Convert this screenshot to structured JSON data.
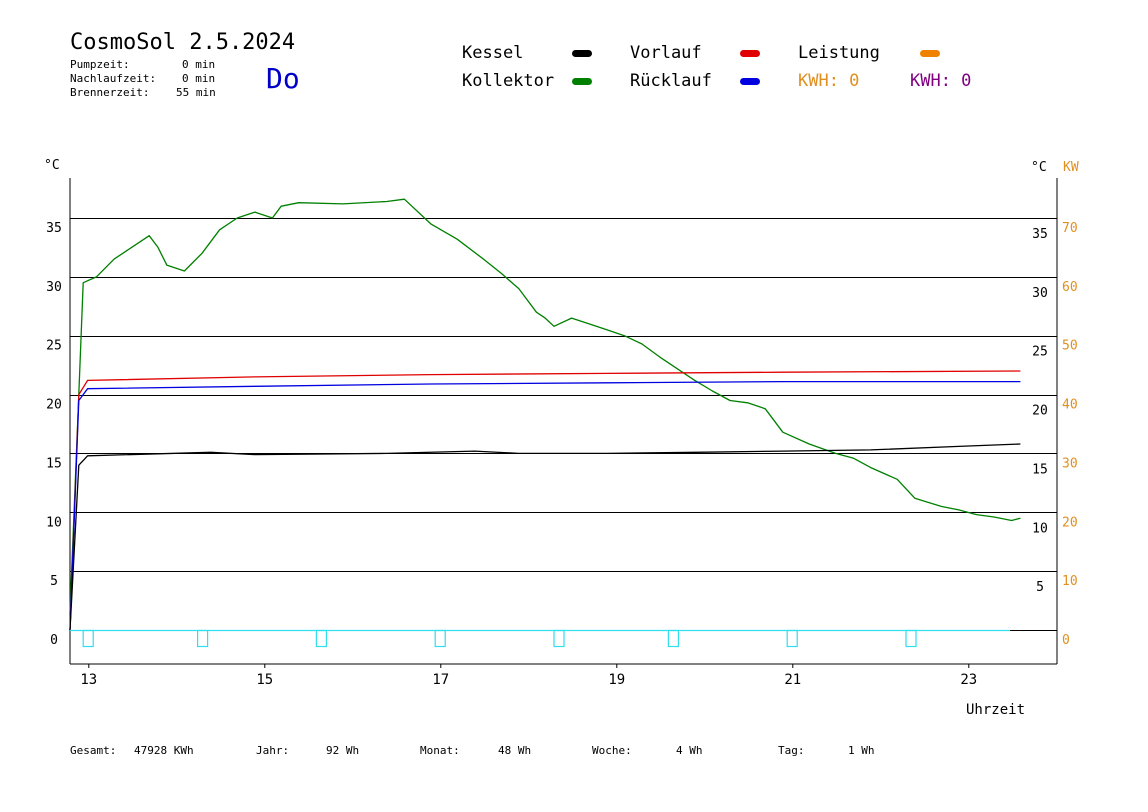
{
  "header": {
    "title": "CosmoSol 2.5.2024",
    "day": "Do",
    "stats": [
      {
        "label": "Pumpzeit:",
        "value": "0 min"
      },
      {
        "label": "Nachlaufzeit:",
        "value": "0 min"
      },
      {
        "label": "Brennerzeit:",
        "value": "55 min"
      }
    ]
  },
  "legend": {
    "kessel": "Kessel",
    "kollektor": "Kollektor",
    "vorlauf": "Vorlauf",
    "ruecklauf": "Rücklauf",
    "leistung": "Leistung",
    "kwh_orange": "KWH: 0",
    "kwh_purple": "KWH: 0"
  },
  "colors": {
    "kessel": "#000000",
    "kollektor": "#008000",
    "vorlauf": "#e00000",
    "ruecklauf": "#0000e0",
    "leistung": "#f08000",
    "kwh_purple": "#800080",
    "pump": "#30e0f0"
  },
  "chart_data": {
    "type": "line",
    "xlabel": "Uhrzeit",
    "ylabel_left": "°C",
    "ylabel_right": "°C",
    "ylabel_right2": "KW",
    "xlim": [
      12.9,
      24.2
    ],
    "ylim": [
      -3,
      40
    ],
    "x_ticks": [
      "13",
      "15",
      "17",
      "19",
      "21",
      "23"
    ],
    "y_ticks_left": [
      "0",
      "5",
      "10",
      "15",
      "20",
      "25",
      "30",
      "35"
    ],
    "y_ticks_right": [
      "5",
      "10",
      "15",
      "20",
      "25",
      "30",
      "35"
    ],
    "y_ticks_kw": [
      "0",
      "10",
      "20",
      "30",
      "40",
      "50",
      "60",
      "70"
    ],
    "grid_y": [
      0,
      5,
      10,
      15,
      20,
      25,
      30,
      35
    ],
    "series": [
      {
        "name": "Kollektor",
        "color": "#008000",
        "points": [
          [
            12.9,
            1.5
          ],
          [
            13.0,
            20
          ],
          [
            13.05,
            29.5
          ],
          [
            13.2,
            30.0
          ],
          [
            13.4,
            31.5
          ],
          [
            13.6,
            32.5
          ],
          [
            13.8,
            33.5
          ],
          [
            13.9,
            32.5
          ],
          [
            14.0,
            31.0
          ],
          [
            14.2,
            30.5
          ],
          [
            14.4,
            32.0
          ],
          [
            14.6,
            34.0
          ],
          [
            14.8,
            35.0
          ],
          [
            15.0,
            35.5
          ],
          [
            15.2,
            35.0
          ],
          [
            15.3,
            36.0
          ],
          [
            15.5,
            36.3
          ],
          [
            16.0,
            36.2
          ],
          [
            16.5,
            36.4
          ],
          [
            16.7,
            36.6
          ],
          [
            17.0,
            34.5
          ],
          [
            17.3,
            33.2
          ],
          [
            17.6,
            31.5
          ],
          [
            17.8,
            30.3
          ],
          [
            18.0,
            29.0
          ],
          [
            18.2,
            27.0
          ],
          [
            18.3,
            26.5
          ],
          [
            18.4,
            25.8
          ],
          [
            18.6,
            26.5
          ],
          [
            18.8,
            26.0
          ],
          [
            19.0,
            25.5
          ],
          [
            19.2,
            25.0
          ],
          [
            19.4,
            24.3
          ],
          [
            19.6,
            23.2
          ],
          [
            19.8,
            22.2
          ],
          [
            20.0,
            21.2
          ],
          [
            20.2,
            20.3
          ],
          [
            20.4,
            19.5
          ],
          [
            20.6,
            19.3
          ],
          [
            20.8,
            18.8
          ],
          [
            21.0,
            16.8
          ],
          [
            21.3,
            15.8
          ],
          [
            21.6,
            15.0
          ],
          [
            21.8,
            14.6
          ],
          [
            22.0,
            13.8
          ],
          [
            22.3,
            12.8
          ],
          [
            22.5,
            11.2
          ],
          [
            22.8,
            10.5
          ],
          [
            23.0,
            10.2
          ],
          [
            23.2,
            9.8
          ],
          [
            23.4,
            9.6
          ],
          [
            23.6,
            9.3
          ],
          [
            23.7,
            9.5
          ]
        ]
      },
      {
        "name": "Vorlauf",
        "color": "#e00000",
        "points": [
          [
            12.9,
            0
          ],
          [
            13.0,
            20
          ],
          [
            13.1,
            21.2
          ],
          [
            15.0,
            21.5
          ],
          [
            17.0,
            21.7
          ],
          [
            19.0,
            21.8
          ],
          [
            21.0,
            21.9
          ],
          [
            23.7,
            22.0
          ]
        ]
      },
      {
        "name": "Rücklauf",
        "color": "#0000e0",
        "points": [
          [
            12.9,
            0
          ],
          [
            13.0,
            19.5
          ],
          [
            13.1,
            20.5
          ],
          [
            15.0,
            20.7
          ],
          [
            17.0,
            20.9
          ],
          [
            19.0,
            21.0
          ],
          [
            21.0,
            21.1
          ],
          [
            23.7,
            21.1
          ]
        ]
      },
      {
        "name": "Kessel",
        "color": "#000000",
        "points": [
          [
            12.9,
            0
          ],
          [
            13.0,
            14.0
          ],
          [
            13.1,
            14.8
          ],
          [
            14.5,
            15.1
          ],
          [
            15.0,
            14.9
          ],
          [
            16.5,
            15.0
          ],
          [
            17.5,
            15.2
          ],
          [
            18.0,
            15.0
          ],
          [
            19.0,
            15.0
          ],
          [
            20.0,
            15.1
          ],
          [
            21.0,
            15.2
          ],
          [
            22.0,
            15.3
          ],
          [
            23.0,
            15.6
          ],
          [
            23.7,
            15.8
          ]
        ]
      }
    ],
    "pump_pulses": [
      13.05,
      14.35,
      15.7,
      17.05,
      18.4,
      19.7,
      21.05,
      22.4
    ],
    "pump_pulse_depth": -1.4
  },
  "footer": [
    {
      "label": "Gesamt:",
      "value": "47928 KWh"
    },
    {
      "label": "Jahr:",
      "value": "92 Wh"
    },
    {
      "label": "Monat:",
      "value": "48 Wh"
    },
    {
      "label": "Woche:",
      "value": "4 Wh"
    },
    {
      "label": "Tag:",
      "value": "1 Wh"
    }
  ]
}
